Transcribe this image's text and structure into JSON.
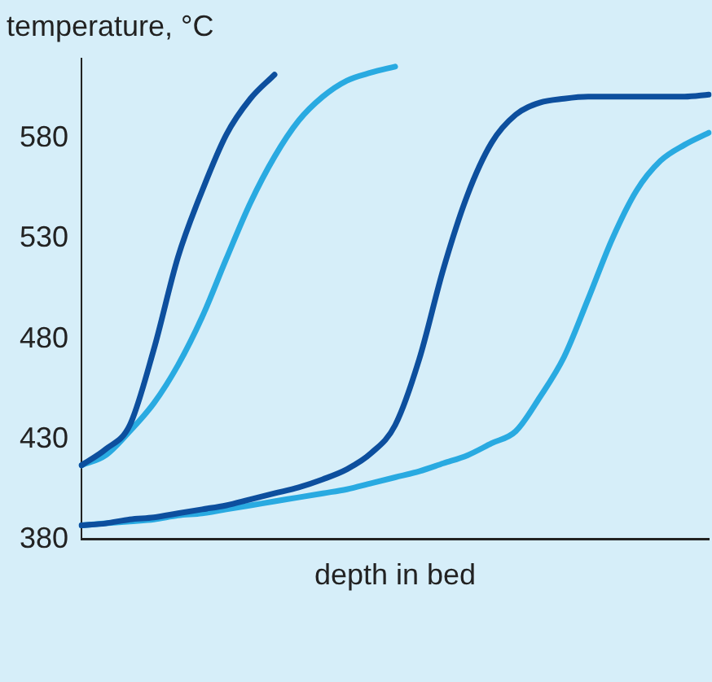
{
  "chart_data": {
    "type": "line",
    "ylabel": "temperature, °C",
    "xlabel": "depth in bed",
    "categories": [
      null,
      null,
      null,
      null,
      null,
      null,
      null,
      null,
      null,
      null,
      null,
      null,
      null,
      null,
      null,
      null,
      null,
      null,
      null,
      null,
      null,
      null,
      null,
      null,
      null,
      null,
      null
    ],
    "series": [
      {
        "color": "#0d4f9e",
        "values": [
          417,
          425,
          437,
          475,
          521,
          554,
          582,
          600,
          612,
          null,
          null,
          null,
          null,
          null,
          null,
          null,
          null,
          null,
          null,
          null,
          null,
          null,
          null,
          null,
          null,
          null,
          null
        ]
      },
      {
        "color": "#29aae1",
        "values": [
          417,
          422,
          434,
          448,
          467,
          491,
          520,
          548,
          571,
          589,
          601,
          609,
          613,
          616,
          null,
          null,
          null,
          null,
          null,
          null,
          null,
          null,
          null,
          null,
          null,
          null,
          null
        ]
      },
      {
        "color": "#0d4f9e",
        "values": [
          387,
          388,
          390,
          391,
          393,
          395,
          397,
          400,
          403,
          406,
          410,
          415,
          423,
          437,
          470,
          515,
          552,
          578,
          592,
          598,
          600,
          601,
          601,
          601,
          601,
          601,
          602
        ]
      },
      {
        "color": "#29aae1",
        "values": [
          387,
          388,
          389,
          390,
          392,
          393,
          395,
          397,
          399,
          401,
          403,
          405,
          408,
          411,
          414,
          418,
          422,
          428,
          434,
          451,
          471,
          500,
          530,
          554,
          569,
          577,
          583
        ]
      }
    ],
    "ylim": [
      380,
      620
    ],
    "yticks": [
      380,
      430,
      480,
      530,
      580
    ],
    "grid": false,
    "legend": false,
    "tick_labels": "y",
    "marker": "none",
    "line_style": "solid"
  }
}
